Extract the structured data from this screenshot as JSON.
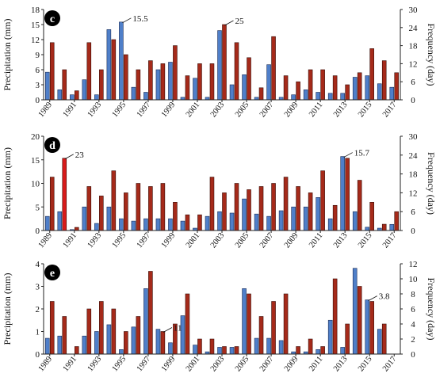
{
  "figure": {
    "panels": [
      {
        "id": "c",
        "ylabel_left": "Precipitation (mm)",
        "ylabel_right": "Frequency (day)"
      },
      {
        "id": "d",
        "ylabel_left": "Precipitation (mm)",
        "ylabel_right": "Frequency (day)"
      },
      {
        "id": "e",
        "ylabel_left": "Precipitation (mm)",
        "ylabel_right": "Frequency (day)"
      }
    ]
  },
  "colors": {
    "precipitation_bar": "#4f7fc9",
    "frequency_bar": "#a52a1a",
    "highlight_frequency_bar": "#d81b1b",
    "axis": "#222222",
    "panel_label_bg": "#000000",
    "panel_label_text": "#ffffff"
  },
  "chart_data": [
    {
      "type": "bar",
      "panel": "c",
      "x": [
        1989,
        1990,
        1991,
        1992,
        1993,
        1994,
        1995,
        1996,
        1997,
        1998,
        1999,
        2000,
        2001,
        2002,
        2003,
        2004,
        2005,
        2006,
        2007,
        2008,
        2009,
        2010,
        2011,
        2012,
        2013,
        2014,
        2015,
        2016,
        2017
      ],
      "xtick_labels": [
        "1989",
        "1991",
        "1993",
        "1995",
        "1997",
        "1999",
        "2001",
        "2003",
        "2005",
        "2007",
        "2009",
        "2011",
        "2013",
        "2015",
        "2017"
      ],
      "series": [
        {
          "axis": "left",
          "values": [
            5.5,
            2.0,
            1.0,
            4.0,
            1.0,
            14.0,
            15.5,
            2.5,
            1.5,
            6.0,
            7.5,
            0.5,
            4.3,
            0.5,
            13.8,
            3.0,
            5.0,
            0.5,
            7.0,
            0.5,
            1.0,
            2.0,
            1.5,
            1.3,
            1.3,
            4.5,
            4.8,
            3.2,
            2.5
          ]
        },
        {
          "axis": "right",
          "values": [
            19,
            10,
            3,
            19,
            10,
            20,
            15,
            10,
            13,
            12,
            18,
            8,
            12,
            12,
            25,
            19,
            14,
            4,
            21,
            8,
            6,
            10,
            10,
            8,
            5,
            9,
            17,
            13,
            9
          ]
        }
      ],
      "ylim_left": [
        0,
        18
      ],
      "yticks_left": [
        "0",
        "3",
        "6",
        "9",
        "12",
        "15",
        "18"
      ],
      "ylim_right": [
        0,
        30
      ],
      "yticks_right": [
        "0",
        "6",
        "12",
        "18",
        "24",
        "30"
      ],
      "annotations": [
        {
          "text": "15.5",
          "x": 1995
        },
        {
          "text": "25",
          "x": 2003
        }
      ]
    },
    {
      "type": "bar",
      "panel": "d",
      "x": [
        1989,
        1990,
        1991,
        1992,
        1993,
        1994,
        1995,
        1996,
        1997,
        1998,
        1999,
        2000,
        2001,
        2002,
        2003,
        2004,
        2005,
        2006,
        2007,
        2008,
        2009,
        2010,
        2011,
        2012,
        2013,
        2014,
        2015,
        2016,
        2017
      ],
      "xtick_labels": [
        "1989",
        "1991",
        "1993",
        "1995",
        "1997",
        "1999",
        "2001",
        "2003",
        "2005",
        "2007",
        "2009",
        "2011",
        "2013",
        "2015",
        "2017"
      ],
      "series": [
        {
          "axis": "left",
          "values": [
            3.0,
            4.0,
            0.2,
            5.0,
            1.5,
            5.0,
            2.5,
            2.0,
            2.5,
            2.5,
            2.5,
            2.0,
            0.5,
            3.0,
            4.0,
            3.7,
            6.7,
            3.5,
            3.0,
            4.2,
            5.0,
            5.0,
            7.0,
            2.5,
            15.7,
            4.0,
            0.7,
            0.5,
            1.3
          ]
        },
        {
          "axis": "right",
          "values": [
            17,
            23,
            1,
            14,
            11,
            19,
            12,
            15,
            14,
            15,
            9,
            5,
            5,
            17,
            12,
            15,
            13,
            14,
            15,
            17,
            14,
            12,
            19,
            8,
            23,
            16,
            9,
            2,
            6
          ]
        }
      ],
      "ylim_left": [
        0,
        20
      ],
      "yticks_left": [
        "0",
        "5",
        "10",
        "15",
        "20"
      ],
      "ylim_right": [
        0,
        30
      ],
      "yticks_right": [
        "0",
        "6",
        "12",
        "18",
        "24",
        "30"
      ],
      "annotations": [
        {
          "text": "23",
          "x": 1990
        },
        {
          "text": "15.7",
          "x": 2013
        }
      ]
    },
    {
      "type": "bar",
      "panel": "e",
      "x": [
        1989,
        1990,
        1991,
        1992,
        1993,
        1994,
        1995,
        1996,
        1997,
        1998,
        1999,
        2000,
        2001,
        2002,
        2003,
        2004,
        2005,
        2006,
        2007,
        2008,
        2009,
        2010,
        2011,
        2012,
        2013,
        2014,
        2015,
        2016,
        2017
      ],
      "xtick_labels": [
        "1989",
        "1991",
        "1993",
        "1995",
        "1997",
        "1999",
        "2001",
        "2003",
        "2005",
        "2007",
        "2009",
        "2011",
        "2013",
        "2015",
        "2017"
      ],
      "series": [
        {
          "axis": "left",
          "values": [
            0.7,
            0.8,
            0.0,
            0.8,
            1.0,
            1.3,
            0.2,
            1.2,
            2.9,
            1.1,
            0.5,
            1.7,
            0.4,
            0.1,
            0.3,
            0.3,
            2.9,
            0.7,
            0.7,
            0.6,
            0.1,
            0.1,
            0.2,
            1.5,
            0.3,
            3.8,
            2.4,
            1.1,
            0.0
          ]
        },
        {
          "axis": "right",
          "values": [
            7,
            5,
            1,
            6,
            7,
            6,
            3,
            5,
            11,
            3,
            4,
            8,
            2,
            2,
            1,
            1,
            8,
            5,
            7,
            8,
            1,
            2,
            1,
            10,
            4,
            9,
            7,
            4,
            0
          ]
        }
      ],
      "ylim_left": [
        0,
        4
      ],
      "yticks_left": [
        "0",
        "1",
        "2",
        "3",
        "4"
      ],
      "ylim_right": [
        0,
        12
      ],
      "yticks_right": [
        "0",
        "2",
        "4",
        "6",
        "8",
        "10",
        "12"
      ],
      "annotations": [
        {
          "text": "11",
          "x": 1998
        },
        {
          "text": "3.8",
          "x": 2015
        }
      ]
    }
  ]
}
